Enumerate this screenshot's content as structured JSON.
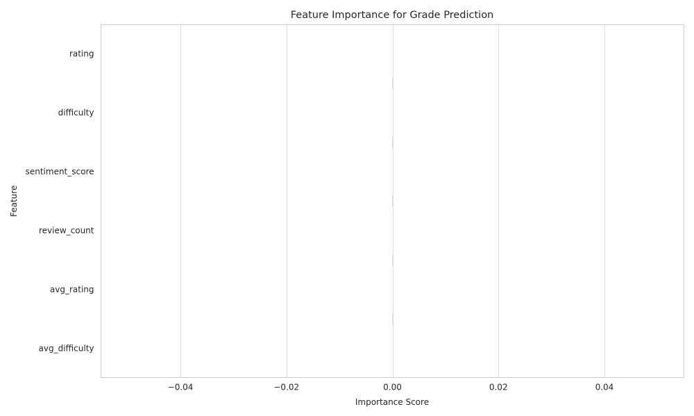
{
  "chart_data": {
    "type": "bar",
    "orientation": "horizontal",
    "title": "Feature Importance for Grade Prediction",
    "xlabel": "Importance Score",
    "ylabel": "Feature",
    "categories": [
      "rating",
      "difficulty",
      "sentiment_score",
      "review_count",
      "avg_rating",
      "avg_difficulty"
    ],
    "values": [
      0,
      0,
      0,
      0,
      0,
      0
    ],
    "xlim": [
      -0.055,
      0.055
    ],
    "xticks": [
      -0.04,
      -0.02,
      0.0,
      0.02,
      0.04
    ],
    "xtick_labels": [
      "−0.04",
      "−0.02",
      "0.00",
      "0.02",
      "0.04"
    ],
    "grid": true,
    "colors": {
      "grid": "#dcdcdc",
      "spine": "#cccccc",
      "bar": "#e6e6e6",
      "text": "#262626"
    }
  }
}
